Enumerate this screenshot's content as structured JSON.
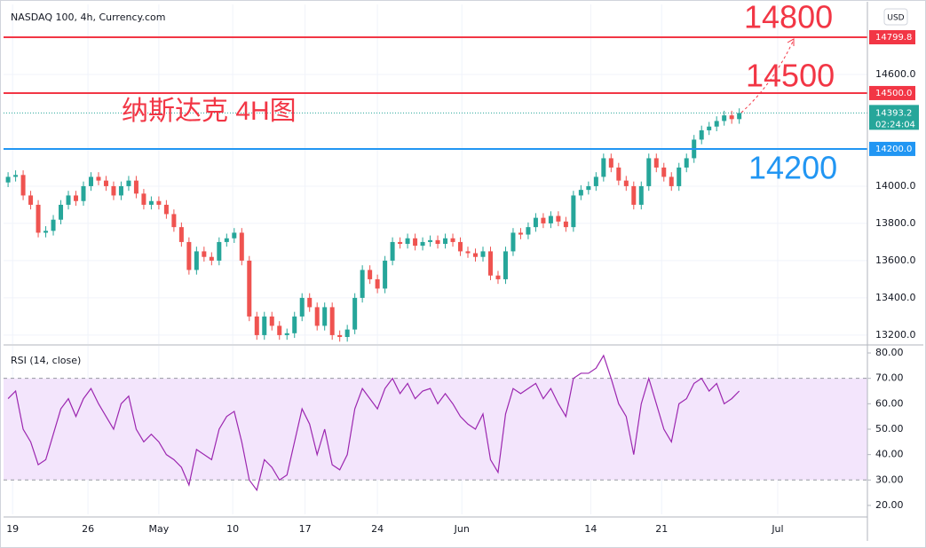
{
  "chart_data": [
    {
      "type": "candlestick",
      "title": "NASDAQ 100, 4h, Currency.com",
      "currency": "USD",
      "up_color": "#26a69a",
      "down_color": "#ef5350",
      "xlim": [
        -0.6,
        114
      ],
      "xticks": [
        {
          "value": 0.6,
          "label": "19"
        },
        {
          "value": 10.6,
          "label": "26"
        },
        {
          "value": 20,
          "label": "May"
        },
        {
          "value": 29.8,
          "label": "10"
        },
        {
          "value": 39.4,
          "label": "17"
        },
        {
          "value": 49,
          "label": "24"
        },
        {
          "value": 60.2,
          "label": "Jun"
        },
        {
          "value": 77.3,
          "label": "14"
        },
        {
          "value": 86.7,
          "label": "21"
        },
        {
          "value": 102.1,
          "label": "Jul"
        }
      ],
      "ylim": [
        13152,
        14976
      ],
      "yticks": [
        {
          "value": 13200,
          "label": "13200.0"
        },
        {
          "value": 13400,
          "label": "13400.0"
        },
        {
          "value": 13600,
          "label": "13600.0"
        },
        {
          "value": 13800,
          "label": "13800.0"
        },
        {
          "value": 14000,
          "label": "14000.0"
        },
        {
          "value": 14600,
          "label": "14600.0"
        }
      ],
      "grid": true,
      "series": [
        {
          "open": [
            14020,
            14050,
            14060,
            13950,
            13900,
            13750,
            13760,
            13820,
            13900,
            13950,
            13920,
            14000,
            14050,
            14030,
            14000,
            13950,
            14000,
            14030,
            13960,
            13900,
            13920,
            13900,
            13850,
            13780,
            13700,
            13550,
            13650,
            13620,
            13600,
            13700,
            13720,
            13750,
            13600,
            13300,
            13200,
            13300,
            13250,
            13200,
            13210,
            13300,
            13400,
            13350,
            13250,
            13350,
            13200,
            13190,
            13230,
            13400,
            13550,
            13500,
            13450,
            13600,
            13700,
            13690,
            13720,
            13680,
            13700,
            13710,
            13690,
            13720,
            13700,
            13650,
            13640,
            13620,
            13650,
            13520,
            13500,
            13650,
            13750,
            13740,
            13780,
            13830,
            13800,
            13840,
            13810,
            13780,
            13950,
            13980,
            14000,
            14050,
            14150,
            14100,
            14030,
            14000,
            13900,
            14000,
            14150,
            14100,
            14050,
            14000,
            14100,
            14150,
            14250,
            14300,
            14320,
            14350,
            14380,
            14360
          ],
          "high": [
            14075,
            14085,
            14085,
            13975,
            13925,
            13785,
            13845,
            13925,
            13975,
            13975,
            14025,
            14075,
            14075,
            14055,
            14025,
            14025,
            14055,
            14055,
            13985,
            13945,
            13945,
            13925,
            13875,
            13805,
            13725,
            13675,
            13675,
            13645,
            13725,
            13745,
            13775,
            13775,
            13625,
            13325,
            13325,
            13325,
            13275,
            13235,
            13325,
            13425,
            13425,
            13375,
            13375,
            13375,
            13225,
            13255,
            13425,
            13575,
            13575,
            13525,
            13625,
            13725,
            13725,
            13745,
            13745,
            13725,
            13735,
            13735,
            13745,
            13745,
            13725,
            13675,
            13665,
            13675,
            13675,
            13545,
            13675,
            13775,
            13775,
            13805,
            13855,
            13855,
            13865,
            13865,
            13835,
            13975,
            14005,
            14025,
            14075,
            14175,
            14175,
            14125,
            14055,
            14025,
            14025,
            14175,
            14175,
            14125,
            14075,
            14125,
            14175,
            14275,
            14325,
            14345,
            14375,
            14405,
            14405,
            14418
          ],
          "low": [
            13995,
            14025,
            13925,
            13875,
            13725,
            13725,
            13735,
            13795,
            13875,
            13895,
            13895,
            13975,
            14005,
            13975,
            13925,
            13925,
            13975,
            13935,
            13875,
            13875,
            13875,
            13825,
            13755,
            13675,
            13525,
            13525,
            13595,
            13575,
            13575,
            13675,
            13695,
            13575,
            13275,
            13175,
            13175,
            13225,
            13175,
            13175,
            13185,
            13275,
            13325,
            13225,
            13225,
            13175,
            13165,
            13165,
            13205,
            13375,
            13475,
            13425,
            13425,
            13575,
            13665,
            13665,
            13655,
            13655,
            13675,
            13665,
            13665,
            13675,
            13625,
            13615,
            13595,
            13595,
            13495,
            13475,
            13475,
            13625,
            13715,
            13715,
            13755,
            13775,
            13775,
            13785,
            13755,
            13755,
            13925,
            13955,
            13975,
            14025,
            14075,
            14005,
            13975,
            13875,
            13875,
            13975,
            14075,
            14025,
            13975,
            13975,
            14075,
            14125,
            14225,
            14275,
            14295,
            14325,
            14335,
            14335
          ],
          "close": [
            14050,
            14060,
            13950,
            13900,
            13750,
            13760,
            13820,
            13900,
            13950,
            13920,
            14000,
            14050,
            14030,
            14000,
            13950,
            14000,
            14030,
            13960,
            13900,
            13920,
            13900,
            13850,
            13780,
            13700,
            13550,
            13650,
            13620,
            13600,
            13700,
            13720,
            13750,
            13600,
            13300,
            13200,
            13300,
            13250,
            13200,
            13210,
            13300,
            13400,
            13350,
            13250,
            13350,
            13200,
            13190,
            13230,
            13400,
            13550,
            13500,
            13450,
            13600,
            13700,
            13690,
            13720,
            13680,
            13700,
            13710,
            13690,
            13720,
            13700,
            13650,
            13640,
            13620,
            13650,
            13520,
            13500,
            13650,
            13750,
            13740,
            13780,
            13830,
            13800,
            13840,
            13810,
            13780,
            13950,
            13980,
            14000,
            14050,
            14150,
            14100,
            14030,
            14000,
            13900,
            14000,
            14150,
            14100,
            14050,
            14000,
            14100,
            14150,
            14250,
            14300,
            14320,
            14350,
            14380,
            14360,
            14393.2
          ]
        }
      ],
      "levels": [
        {
          "value": 14799.8,
          "label": "14799.8",
          "color": "#f23645"
        },
        {
          "value": 14500,
          "label": "14500.0",
          "color": "#f23645"
        },
        {
          "value": 14200,
          "label": "14200.0",
          "color": "#2196f3"
        }
      ],
      "last_price": {
        "value": 14393.2,
        "label": "14393.2",
        "countdown": "02:24:04",
        "color": "#26a69a"
      },
      "annotations": [
        {
          "text": "14800",
          "color": "#f23645"
        },
        {
          "text": "14500",
          "color": "#f23645"
        },
        {
          "text": "14200",
          "color": "#2196f3"
        },
        {
          "text": "纳斯达克 4H图",
          "color": "#f23645"
        }
      ]
    },
    {
      "type": "line",
      "title": "RSI (14, close)",
      "ylim": [
        16.5,
        82.8
      ],
      "yticks": [
        {
          "value": 20,
          "label": "20.00"
        },
        {
          "value": 30,
          "label": "30.00"
        },
        {
          "value": 40,
          "label": "40.00"
        },
        {
          "value": 50,
          "label": "50.00"
        },
        {
          "value": 60,
          "label": "60.00"
        },
        {
          "value": 70,
          "label": "70.00"
        },
        {
          "value": 80,
          "label": "80.00"
        }
      ],
      "band": {
        "from": 30,
        "to": 70,
        "color": "#f3e5fc"
      },
      "series": [
        {
          "color": "#9c27b0",
          "values": [
            62,
            65,
            50,
            45,
            36,
            38,
            48,
            58,
            62,
            55,
            62,
            66,
            60,
            55,
            50,
            60,
            63,
            50,
            45,
            48,
            45,
            40,
            38,
            35,
            28,
            42,
            40,
            38,
            50,
            55,
            57,
            45,
            30,
            26,
            38,
            35,
            30,
            32,
            45,
            58,
            52,
            40,
            50,
            36,
            34,
            40,
            58,
            66,
            62,
            58,
            66,
            70,
            64,
            68,
            62,
            65,
            66,
            60,
            64,
            60,
            55,
            52,
            50,
            56,
            38,
            33,
            56,
            66,
            64,
            66,
            68,
            62,
            66,
            60,
            55,
            70,
            72,
            72,
            74,
            79,
            70,
            60,
            55,
            40,
            60,
            70,
            60,
            50,
            45,
            60,
            62,
            68,
            70,
            65,
            68,
            60,
            62,
            65
          ]
        }
      ]
    }
  ]
}
